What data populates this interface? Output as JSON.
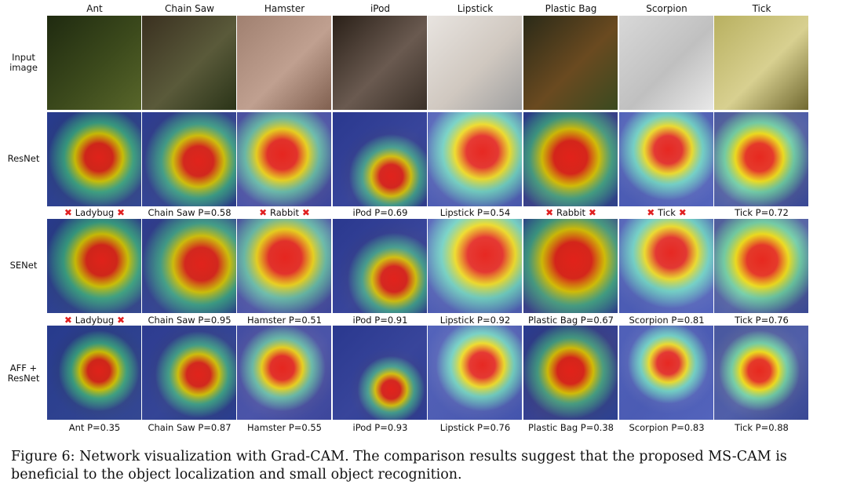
{
  "columns": [
    "Ant",
    "Chain Saw",
    "Hamster",
    "iPod",
    "Lipstick",
    "Plastic Bag",
    "Scorpion",
    "Tick"
  ],
  "rows": [
    {
      "label": "Input\nimage"
    },
    {
      "label": "ResNet"
    },
    {
      "label": "SENet"
    },
    {
      "label": "AFF +\nResNet"
    }
  ],
  "predictions": {
    "resnet": [
      {
        "text": "Ladybug",
        "wrong": true
      },
      {
        "text": "Chain Saw P=0.58",
        "wrong": false
      },
      {
        "text": "Rabbit",
        "wrong": true
      },
      {
        "text": "iPod P=0.69",
        "wrong": false
      },
      {
        "text": "Lipstick P=0.54",
        "wrong": false
      },
      {
        "text": "Rabbit",
        "wrong": true
      },
      {
        "text": "Tick",
        "wrong": true
      },
      {
        "text": "Tick P=0.72",
        "wrong": false
      }
    ],
    "senet": [
      {
        "text": "Ladybug",
        "wrong": true
      },
      {
        "text": "Chain Saw P=0.95",
        "wrong": false
      },
      {
        "text": "Hamster P=0.51",
        "wrong": false
      },
      {
        "text": "iPod P=0.91",
        "wrong": false
      },
      {
        "text": "Lipstick P=0.92",
        "wrong": false
      },
      {
        "text": "Plastic Bag P=0.67",
        "wrong": false
      },
      {
        "text": "Scorpion P=0.81",
        "wrong": false
      },
      {
        "text": "Tick P=0.76",
        "wrong": false
      }
    ],
    "aff": [
      {
        "text": "Ant P=0.35",
        "wrong": false
      },
      {
        "text": "Chain Saw P=0.87",
        "wrong": false
      },
      {
        "text": "Hamster P=0.55",
        "wrong": false
      },
      {
        "text": "iPod P=0.93",
        "wrong": false
      },
      {
        "text": "Lipstick P=0.76",
        "wrong": false
      },
      {
        "text": "Plastic Bag P=0.38",
        "wrong": false
      },
      {
        "text": "Scorpion P=0.83",
        "wrong": false
      },
      {
        "text": "Tick P=0.88",
        "wrong": false
      }
    ]
  },
  "wrong_mark": "✖",
  "caption": "Figure 6: Network visualization with Grad-CAM. The comparison results suggest that the proposed MS-CAM is beneficial to the object localization and small object recognition.",
  "colors": {
    "heat_hot": "#e8201a",
    "heat_warm": "#f5e000",
    "heat_mid": "#3ad0c0",
    "heat_cool": "#2a3fb0",
    "wrong_mark": "#e02020"
  }
}
